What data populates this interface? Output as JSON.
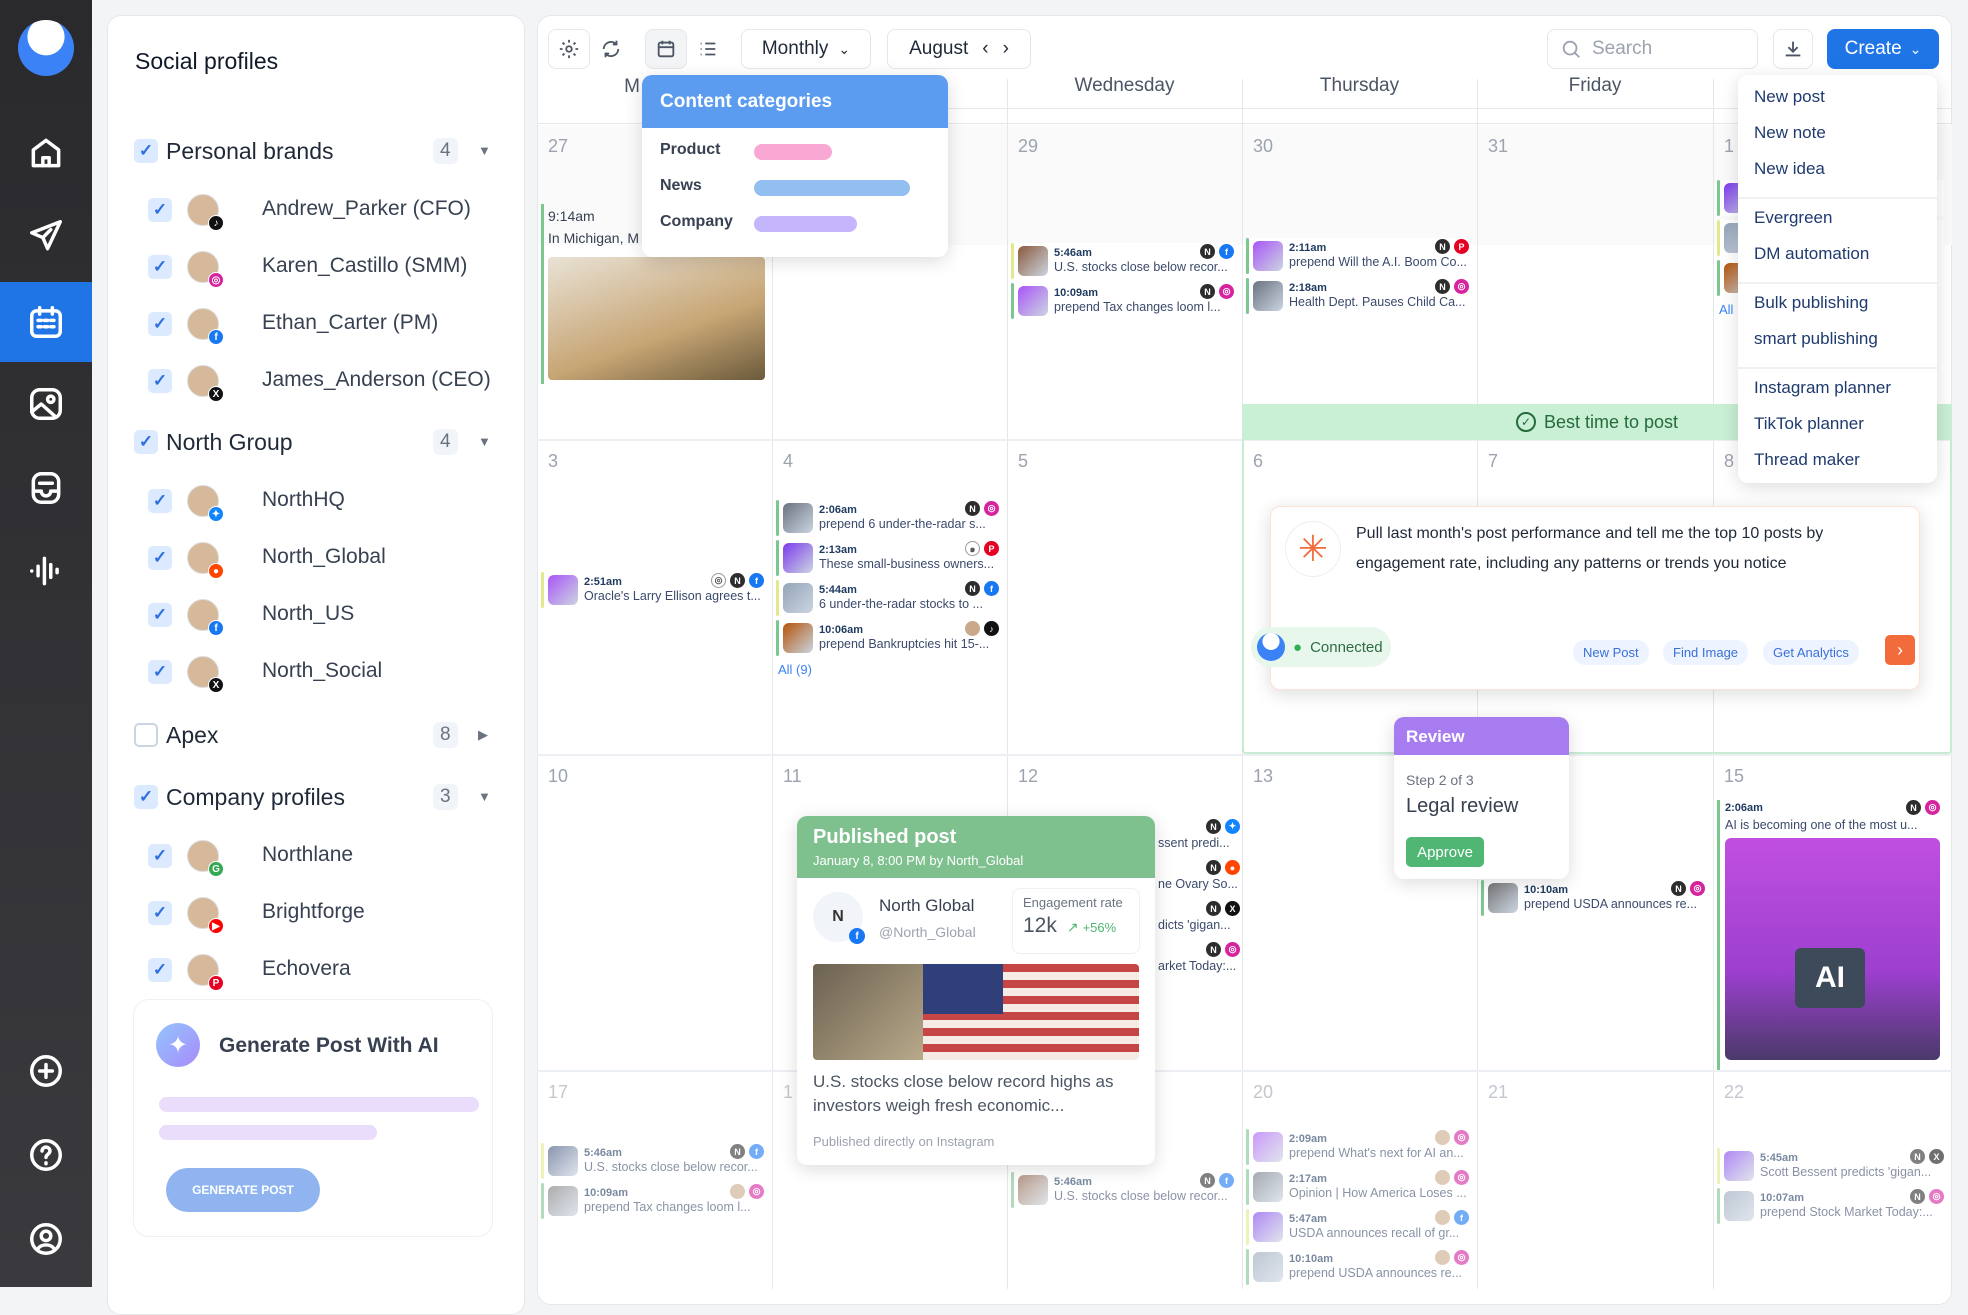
{
  "nav": {
    "items": [
      {
        "name": "home",
        "icon": "home-icon"
      },
      {
        "name": "publish",
        "icon": "send-icon"
      },
      {
        "name": "calendar",
        "icon": "calendar-icon",
        "active": true
      },
      {
        "name": "media",
        "icon": "image-icon"
      },
      {
        "name": "inbox",
        "icon": "inbox-icon"
      },
      {
        "name": "analytics",
        "icon": "audio-bars-icon"
      },
      {
        "name": "add",
        "icon": "plus-circle-icon"
      },
      {
        "name": "help",
        "icon": "help-icon"
      },
      {
        "name": "profile",
        "icon": "user-icon"
      }
    ]
  },
  "sidebar": {
    "title": "Social profiles",
    "groups": [
      {
        "label": "Personal brands",
        "count": "4",
        "checked": true,
        "expanded": true,
        "profiles": [
          {
            "name": "Andrew_Parker (CFO)",
            "platform": "tiktok"
          },
          {
            "name": "Karen_Castillo (SMM)",
            "platform": "instagram"
          },
          {
            "name": "Ethan_Carter (PM)",
            "platform": "facebook"
          },
          {
            "name": "James_Anderson (CEO)",
            "platform": "x"
          }
        ]
      },
      {
        "label": "North Group",
        "count": "4",
        "checked": true,
        "expanded": true,
        "profiles": [
          {
            "name": "NorthHQ",
            "platform": "bluesky"
          },
          {
            "name": "North_Global",
            "platform": "reddit"
          },
          {
            "name": "North_US",
            "platform": "facebook"
          },
          {
            "name": "North_Social",
            "platform": "x"
          }
        ]
      },
      {
        "label": "Apex",
        "count": "8",
        "checked": false,
        "expanded": false,
        "profiles": []
      },
      {
        "label": "Company profiles",
        "count": "3",
        "checked": true,
        "expanded": true,
        "profiles": [
          {
            "name": "Northlane",
            "platform": "google"
          },
          {
            "name": "Brightforge",
            "platform": "youtube"
          },
          {
            "name": "Echovera",
            "platform": "pinterest"
          }
        ]
      }
    ],
    "generate": {
      "title": "Generate Post With AI",
      "button": "GENERATE POST"
    }
  },
  "toolbar": {
    "view": "Monthly",
    "month": "August",
    "search_placeholder": "Search",
    "create": "Create"
  },
  "days": [
    "M",
    "",
    "Wednesday",
    "Thursday",
    "Friday",
    ""
  ],
  "colors": {
    "accent": "#1f74e6",
    "green_stripe": "#7cc68f",
    "yellow_stripe": "#e3e88a",
    "facebook": "#1877f2",
    "instagram": "#d6249f",
    "pinterest": "#e60023",
    "tiktok": "#111111",
    "x": "#111111",
    "bluesky": "#1185fe",
    "reddit": "#ff4500",
    "account": "#2d2d2d"
  },
  "weeks": [
    [
      {
        "date": "27",
        "posts": [
          {
            "time": "9:14am",
            "text": "In Michigan, M",
            "stripe": "green",
            "image": true
          }
        ]
      },
      {
        "date": "",
        "posts": []
      },
      {
        "date": "29",
        "posts": [
          {
            "time": "5:46am",
            "text": "U.S. stocks close below recor...",
            "stripe": "yellow",
            "icons": [
              "account",
              "facebook"
            ]
          },
          {
            "time": "10:09am",
            "text": "prepend Tax changes loom l...",
            "stripe": "green",
            "icons": [
              "account",
              "instagram"
            ]
          }
        ]
      },
      {
        "date": "30",
        "posts": [
          {
            "time": "2:11am",
            "text": "prepend Will the A.I. Boom Co...",
            "stripe": "green",
            "icons": [
              "account",
              "pinterest"
            ]
          },
          {
            "time": "2:18am",
            "text": "Health Dept. Pauses Child Ca...",
            "stripe": "green",
            "icons": [
              "account",
              "instagram"
            ]
          }
        ]
      },
      {
        "date": "31",
        "posts": []
      },
      {
        "date": "1",
        "posts": [
          {
            "time": "",
            "text": "",
            "stripe": "green"
          },
          {
            "time": "",
            "text": "",
            "stripe": "yellow"
          },
          {
            "time": "",
            "text": "",
            "stripe": "green"
          }
        ],
        "all": "All"
      }
    ],
    [
      {
        "date": "3",
        "posts": [
          {
            "time": "2:51am",
            "text": "Oracle's Larry Ellison agrees t...",
            "stripe": "yellow",
            "icons": [
              "instagram-outline",
              "account",
              "facebook"
            ]
          }
        ]
      },
      {
        "date": "4",
        "posts": [
          {
            "time": "2:06am",
            "text": "prepend 6 under-the-radar s...",
            "stripe": "green",
            "icons": [
              "account",
              "instagram"
            ]
          },
          {
            "time": "2:13am",
            "text": "These small-business owners...",
            "stripe": "green",
            "icons": [
              "reddit-outline",
              "pinterest"
            ]
          },
          {
            "time": "5:44am",
            "text": "6 under-the-radar stocks to ...",
            "stripe": "yellow",
            "icons": [
              "account",
              "facebook"
            ]
          },
          {
            "time": "10:06am",
            "text": "prepend Bankruptcies hit 15-...",
            "stripe": "green",
            "icons": [
              "avatar",
              "tiktok"
            ]
          }
        ],
        "all": "All (9)"
      },
      {
        "date": "5",
        "posts": []
      },
      {
        "date": "6",
        "posts": []
      },
      {
        "date": "7",
        "posts": []
      },
      {
        "date": "8",
        "posts": []
      }
    ],
    [
      {
        "date": "10",
        "posts": []
      },
      {
        "date": "11",
        "posts": []
      },
      {
        "date": "12",
        "posts": [
          {
            "time": "",
            "text": "ssent predi...",
            "stripe": "green",
            "icons": [
              "account",
              "bluesky"
            ]
          },
          {
            "time": "",
            "text": "ne Ovary So...",
            "stripe": "green",
            "icons": [
              "account",
              "reddit"
            ]
          },
          {
            "time": "",
            "text": "dicts 'gigan...",
            "stripe": "green",
            "icons": [
              "account",
              "x"
            ]
          },
          {
            "time": "",
            "text": "arket Today:...",
            "stripe": "green",
            "icons": [
              "account",
              "instagram"
            ]
          }
        ]
      },
      {
        "date": "13",
        "posts": []
      },
      {
        "date": "",
        "posts": [
          {
            "time": "10:10am",
            "text": "prepend USDA announces re...",
            "stripe": "green",
            "icons": [
              "account",
              "instagram"
            ]
          }
        ]
      },
      {
        "date": "15",
        "posts": [
          {
            "time": "2:06am",
            "text": "AI is becoming one of the most u...",
            "stripe": "green",
            "icons": [
              "account",
              "instagram"
            ],
            "image": true
          }
        ]
      }
    ],
    [
      {
        "date": "17",
        "posts": [
          {
            "time": "5:46am",
            "text": "U.S. stocks close below recor...",
            "stripe": "yellow",
            "icons": [
              "account",
              "facebook"
            ]
          },
          {
            "time": "10:09am",
            "text": "prepend Tax changes loom l...",
            "stripe": "green",
            "icons": [
              "avatar",
              "instagram"
            ]
          }
        ]
      },
      {
        "date": "1",
        "posts": []
      },
      {
        "date": "",
        "posts": [
          {
            "time": "5:46am",
            "text": "U.S. stocks close below recor...",
            "stripe": "green",
            "icons": [
              "account",
              "facebook"
            ]
          }
        ]
      },
      {
        "date": "20",
        "posts": [
          {
            "time": "2:09am",
            "text": "prepend What's next for AI an...",
            "stripe": "green",
            "icons": [
              "avatar",
              "instagram"
            ]
          },
          {
            "time": "2:17am",
            "text": "Opinion | How America Loses ...",
            "stripe": "green",
            "icons": [
              "avatar",
              "instagram"
            ]
          },
          {
            "time": "5:47am",
            "text": "USDA announces recall of gr...",
            "stripe": "yellow",
            "icons": [
              "avatar",
              "facebook"
            ]
          },
          {
            "time": "10:10am",
            "text": "prepend USDA announces re...",
            "stripe": "green",
            "icons": [
              "avatar",
              "instagram"
            ]
          }
        ]
      },
      {
        "date": "21",
        "posts": []
      },
      {
        "date": "22",
        "posts": [
          {
            "time": "5:45am",
            "text": "Scott Bessent predicts 'gigan...",
            "stripe": "yellow",
            "icons": [
              "account",
              "x"
            ]
          },
          {
            "time": "10:07am",
            "text": "prepend Stock Market Today:...",
            "stripe": "green",
            "icons": [
              "account",
              "instagram"
            ]
          }
        ]
      }
    ]
  ],
  "categories": {
    "title": "Content categories",
    "items": [
      {
        "label": "Product",
        "color": "#f9a8d4",
        "fill": 0.5
      },
      {
        "label": "News",
        "color": "#93bff0",
        "fill": 1.0
      },
      {
        "label": "Company",
        "color": "#c4b5fd",
        "fill": 0.66
      }
    ]
  },
  "create_menu": {
    "groups": [
      [
        "New post",
        "New note",
        "New idea"
      ],
      [
        "Evergreen",
        "DM automation"
      ],
      [
        "Bulk publishing",
        "smart publishing"
      ],
      [
        "Instagram planner",
        "TikTok planner",
        "Thread maker"
      ]
    ]
  },
  "best_time": "Best time to post",
  "ai_chat": {
    "prompt": "Pull last month's post performance and tell me the top 10 posts by engagement rate, including any patterns or trends you notice",
    "status": "Connected",
    "actions": [
      "New Post",
      "Find Image",
      "Get Analytics"
    ]
  },
  "review": {
    "title": "Review",
    "step": "Step 2 of 3",
    "stage": "Legal review",
    "approve": "Approve"
  },
  "published": {
    "title": "Published post",
    "subtitle": "January 8, 8:00 PM by North_Global",
    "account": "North Global",
    "handle": "@North_Global",
    "metric_label": "Engagement rate",
    "metric_value": "12k",
    "metric_change": "+56%",
    "text": "U.S. stocks close below record highs as investors weigh fresh economic...",
    "footer": "Published directly on Instagram"
  }
}
